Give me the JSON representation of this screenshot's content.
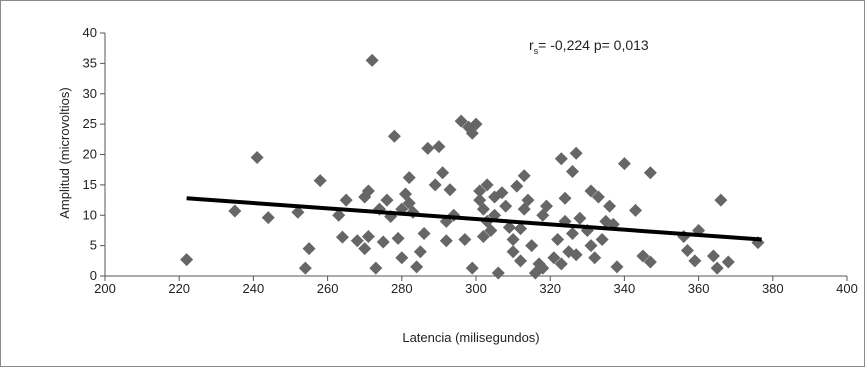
{
  "chart_data": {
    "type": "scatter",
    "xlabel": "Latencia (milisegundos)",
    "ylabel": "Amplitud (microvoltios)",
    "xlim": [
      200,
      400
    ],
    "ylim": [
      0,
      40
    ],
    "xticks": [
      200,
      220,
      240,
      260,
      280,
      300,
      320,
      340,
      360,
      380,
      400
    ],
    "yticks": [
      0,
      5,
      10,
      15,
      20,
      25,
      30,
      35,
      40
    ],
    "grid": false,
    "legend": "none",
    "marker": "diamond",
    "marker_color": "#666666",
    "trendline": {
      "x": [
        222,
        377
      ],
      "y": [
        12.8,
        6.0
      ],
      "color": "#000000"
    },
    "annotation": {
      "prefix": "r",
      "subscript": "s",
      "text": "= -0,224 p= 0,013"
    },
    "points": [
      [
        222,
        2.7
      ],
      [
        235,
        10.7
      ],
      [
        241,
        19.5
      ],
      [
        244,
        9.6
      ],
      [
        252,
        10.5
      ],
      [
        254,
        1.3
      ],
      [
        255,
        4.5
      ],
      [
        258,
        15.7
      ],
      [
        263,
        10
      ],
      [
        264,
        6.4
      ],
      [
        265,
        12.5
      ],
      [
        268,
        5.8
      ],
      [
        270,
        13
      ],
      [
        271,
        14
      ],
      [
        271,
        6.5
      ],
      [
        272,
        35.5
      ],
      [
        270,
        4.5
      ],
      [
        273,
        1.3
      ],
      [
        274,
        11
      ],
      [
        275,
        5.6
      ],
      [
        276,
        12.5
      ],
      [
        277,
        9.8
      ],
      [
        278,
        23
      ],
      [
        279,
        6.2
      ],
      [
        280,
        3
      ],
      [
        280,
        11
      ],
      [
        281,
        13.5
      ],
      [
        282,
        16.2
      ],
      [
        282,
        12
      ],
      [
        283,
        10.5
      ],
      [
        284,
        1.5
      ],
      [
        285,
        4
      ],
      [
        286,
        7
      ],
      [
        287,
        21
      ],
      [
        289,
        15
      ],
      [
        290,
        21.3
      ],
      [
        291,
        17
      ],
      [
        292,
        9
      ],
      [
        292,
        5.8
      ],
      [
        293,
        14.2
      ],
      [
        294,
        10
      ],
      [
        296,
        25.5
      ],
      [
        297,
        6
      ],
      [
        298,
        24.5
      ],
      [
        299,
        1.3
      ],
      [
        299,
        23.5
      ],
      [
        300,
        25
      ],
      [
        301,
        14
      ],
      [
        301,
        12.5
      ],
      [
        302,
        6.5
      ],
      [
        302,
        11
      ],
      [
        303,
        9
      ],
      [
        303,
        15
      ],
      [
        304,
        7.5
      ],
      [
        305,
        13
      ],
      [
        305,
        10
      ],
      [
        306,
        0.5
      ],
      [
        307,
        13.7
      ],
      [
        308,
        11.5
      ],
      [
        309,
        8
      ],
      [
        310,
        4
      ],
      [
        310,
        6
      ],
      [
        311,
        14.8
      ],
      [
        312,
        2.5
      ],
      [
        312,
        7.8
      ],
      [
        313,
        16.5
      ],
      [
        313,
        11
      ],
      [
        314,
        12.5
      ],
      [
        315,
        5
      ],
      [
        316,
        0.5
      ],
      [
        317,
        2
      ],
      [
        318,
        10
      ],
      [
        318,
        1.3
      ],
      [
        319,
        11.5
      ],
      [
        321,
        3
      ],
      [
        322,
        6
      ],
      [
        323,
        19.3
      ],
      [
        323,
        2
      ],
      [
        324,
        12.8
      ],
      [
        324,
        9
      ],
      [
        325,
        4
      ],
      [
        326,
        7
      ],
      [
        326,
        17.2
      ],
      [
        327,
        20.2
      ],
      [
        327,
        3.5
      ],
      [
        328,
        9.5
      ],
      [
        330,
        7.5
      ],
      [
        331,
        5
      ],
      [
        331,
        14
      ],
      [
        332,
        3
      ],
      [
        333,
        13
      ],
      [
        334,
        6
      ],
      [
        335,
        9
      ],
      [
        336,
        11.5
      ],
      [
        337,
        8.5
      ],
      [
        338,
        1.5
      ],
      [
        340,
        18.5
      ],
      [
        343,
        10.8
      ],
      [
        345,
        3.3
      ],
      [
        347,
        2.3
      ],
      [
        347,
        17
      ],
      [
        356,
        6.5
      ],
      [
        357,
        4.2
      ],
      [
        359,
        2.5
      ],
      [
        360,
        7.5
      ],
      [
        364,
        3.3
      ],
      [
        365,
        1.3
      ],
      [
        366,
        12.5
      ],
      [
        368,
        2.3
      ],
      [
        376,
        5.5
      ]
    ]
  }
}
